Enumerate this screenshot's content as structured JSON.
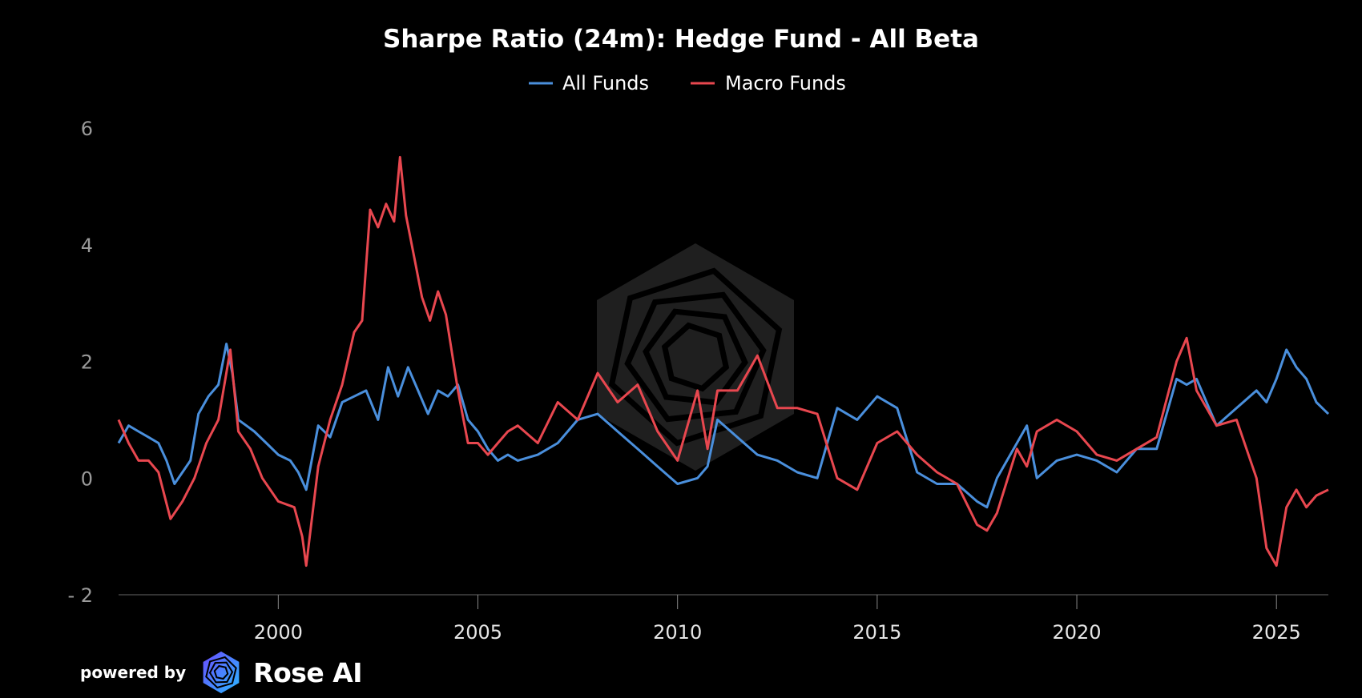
{
  "chart_data": {
    "type": "line",
    "title": "Sharpe Ratio (24m): Hedge Fund - All Beta",
    "xlabel": "",
    "ylabel": "",
    "xlim": [
      1996.0,
      2026.3
    ],
    "ylim": [
      -2,
      6
    ],
    "yticks": [
      6,
      4,
      2,
      0,
      -2
    ],
    "ytick_labels": [
      "6",
      "4",
      "2",
      "0",
      "- 2"
    ],
    "xticks": [
      2000,
      2005,
      2010,
      2015,
      2020,
      2025
    ],
    "xtick_labels": [
      "2000",
      "2005",
      "2010",
      "2015",
      "2020",
      "2025"
    ],
    "grid": false,
    "legend_position": "top-center",
    "series": [
      {
        "name": "All Funds",
        "color": "#4a8fdc",
        "x": [
          1996.0,
          1996.25,
          1996.5,
          1996.75,
          1997.0,
          1997.2,
          1997.4,
          1997.6,
          1997.8,
          1998.0,
          1998.25,
          1998.5,
          1998.7,
          1998.85,
          1999.0,
          1999.2,
          1999.4,
          1999.7,
          2000.0,
          2000.3,
          2000.5,
          2000.7,
          2001.0,
          2001.3,
          2001.6,
          2001.9,
          2002.2,
          2002.5,
          2002.75,
          2003.0,
          2003.25,
          2003.5,
          2003.75,
          2004.0,
          2004.25,
          2004.5,
          2004.75,
          2005.0,
          2005.25,
          2005.5,
          2005.75,
          2006.0,
          2006.5,
          2007.0,
          2007.5,
          2008.0,
          2008.5,
          2009.0,
          2009.5,
          2010.0,
          2010.5,
          2010.75,
          2011.0,
          2011.5,
          2012.0,
          2012.5,
          2013.0,
          2013.5,
          2014.0,
          2014.5,
          2015.0,
          2015.5,
          2016.0,
          2016.5,
          2017.0,
          2017.5,
          2017.75,
          2018.0,
          2018.5,
          2018.75,
          2019.0,
          2019.5,
          2020.0,
          2020.5,
          2021.0,
          2021.5,
          2022.0,
          2022.5,
          2022.75,
          2023.0,
          2023.5,
          2024.0,
          2024.5,
          2024.75,
          2025.0,
          2025.25,
          2025.5,
          2025.75,
          2026.0,
          2026.3
        ],
        "values": [
          0.6,
          0.9,
          0.8,
          0.7,
          0.6,
          0.3,
          -0.1,
          0.1,
          0.3,
          1.1,
          1.4,
          1.6,
          2.3,
          1.8,
          1.0,
          0.9,
          0.8,
          0.6,
          0.4,
          0.3,
          0.1,
          -0.2,
          0.9,
          0.7,
          1.3,
          1.4,
          1.5,
          1.0,
          1.9,
          1.4,
          1.9,
          1.5,
          1.1,
          1.5,
          1.4,
          1.6,
          1.0,
          0.8,
          0.5,
          0.3,
          0.4,
          0.3,
          0.4,
          0.6,
          1.0,
          1.1,
          0.8,
          0.5,
          0.2,
          -0.1,
          0.0,
          0.2,
          1.0,
          0.7,
          0.4,
          0.3,
          0.1,
          0.0,
          1.2,
          1.0,
          1.4,
          1.2,
          0.1,
          -0.1,
          -0.1,
          -0.4,
          -0.5,
          0.0,
          0.6,
          0.9,
          0.0,
          0.3,
          0.4,
          0.3,
          0.1,
          0.5,
          0.5,
          1.7,
          1.6,
          1.7,
          0.9,
          1.2,
          1.5,
          1.3,
          1.7,
          2.2,
          1.9,
          1.7,
          1.3,
          1.1
        ]
      },
      {
        "name": "Macro Funds",
        "color": "#e8474f",
        "x": [
          1996.0,
          1996.25,
          1996.5,
          1996.75,
          1997.0,
          1997.3,
          1997.6,
          1997.9,
          1998.2,
          1998.5,
          1998.8,
          1999.0,
          1999.3,
          1999.6,
          2000.0,
          2000.4,
          2000.6,
          2000.7,
          2001.0,
          2001.3,
          2001.6,
          2001.9,
          2002.1,
          2002.3,
          2002.5,
          2002.7,
          2002.9,
          2003.05,
          2003.2,
          2003.4,
          2003.6,
          2003.8,
          2004.0,
          2004.2,
          2004.5,
          2004.75,
          2005.0,
          2005.25,
          2005.5,
          2005.75,
          2006.0,
          2006.5,
          2007.0,
          2007.5,
          2008.0,
          2008.5,
          2009.0,
          2009.5,
          2010.0,
          2010.5,
          2010.75,
          2011.0,
          2011.5,
          2012.0,
          2012.5,
          2013.0,
          2013.5,
          2014.0,
          2014.5,
          2015.0,
          2015.5,
          2016.0,
          2016.5,
          2017.0,
          2017.5,
          2017.75,
          2018.0,
          2018.5,
          2018.75,
          2019.0,
          2019.5,
          2020.0,
          2020.5,
          2021.0,
          2021.5,
          2022.0,
          2022.5,
          2022.75,
          2023.0,
          2023.5,
          2024.0,
          2024.5,
          2024.75,
          2025.0,
          2025.25,
          2025.5,
          2025.75,
          2026.0,
          2026.3
        ],
        "values": [
          1.0,
          0.6,
          0.3,
          0.3,
          0.1,
          -0.7,
          -0.4,
          0.0,
          0.6,
          1.0,
          2.2,
          0.8,
          0.5,
          0.0,
          -0.4,
          -0.5,
          -1.0,
          -1.5,
          0.2,
          1.0,
          1.6,
          2.5,
          2.7,
          4.6,
          4.3,
          4.7,
          4.4,
          5.5,
          4.5,
          3.8,
          3.1,
          2.7,
          3.2,
          2.8,
          1.5,
          0.6,
          0.6,
          0.4,
          0.6,
          0.8,
          0.9,
          0.6,
          1.3,
          1.0,
          1.8,
          1.3,
          1.6,
          0.8,
          0.3,
          1.5,
          0.5,
          1.5,
          1.5,
          2.1,
          1.2,
          1.2,
          1.1,
          0.0,
          -0.2,
          0.6,
          0.8,
          0.4,
          0.1,
          -0.1,
          -0.8,
          -0.9,
          -0.6,
          0.5,
          0.2,
          0.8,
          1.0,
          0.8,
          0.4,
          0.3,
          0.5,
          0.7,
          2.0,
          2.4,
          1.5,
          0.9,
          1.0,
          0.0,
          -1.2,
          -1.5,
          -0.5,
          -0.2,
          -0.5,
          -0.3,
          -0.2
        ]
      }
    ]
  },
  "footer": {
    "powered_by": "powered by",
    "brand": "Rose AI"
  }
}
